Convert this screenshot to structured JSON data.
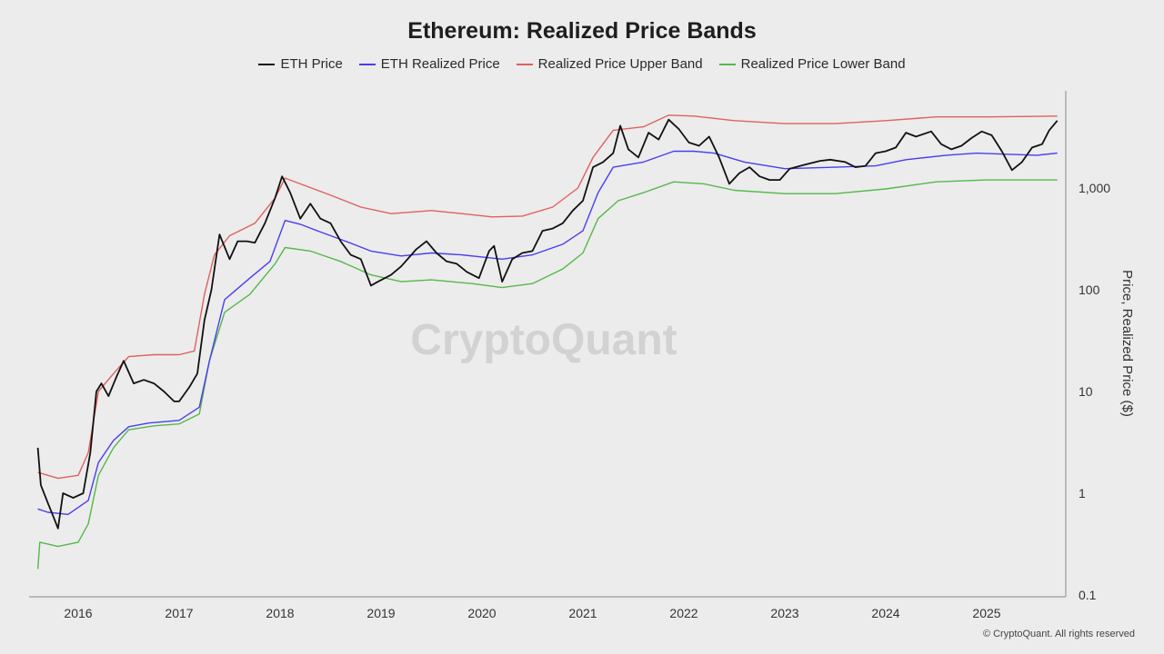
{
  "page": {
    "copyright": "© CryptoQuant. All rights reserved",
    "watermark": "CryptoQuant"
  },
  "chart_data": {
    "type": "line",
    "title": "Ethereum: Realized Price Bands",
    "xlabel": "",
    "ylabel": "Price, Realized Price ($)",
    "yscale": "log",
    "ylim": [
      0.1,
      7000
    ],
    "xlim": [
      2015.6,
      2025.75
    ],
    "x_tick_labels": [
      "2016",
      "2017",
      "2018",
      "2019",
      "2020",
      "2021",
      "2022",
      "2023",
      "2024",
      "2025"
    ],
    "x_ticks": [
      2016,
      2017,
      2018,
      2019,
      2020,
      2021,
      2022,
      2023,
      2024,
      2025
    ],
    "y_tick_labels": [
      "0.1",
      "1",
      "10",
      "100",
      "1,000"
    ],
    "y_ticks": [
      0.1,
      1,
      10,
      100,
      1000
    ],
    "grid": false,
    "legend_position": "top-center",
    "series": [
      {
        "name": "ETH Price",
        "color": "#111111",
        "points": [
          [
            2015.6,
            2.8
          ],
          [
            2015.63,
            1.2
          ],
          [
            2015.7,
            0.8
          ],
          [
            2015.75,
            0.6
          ],
          [
            2015.8,
            0.45
          ],
          [
            2015.85,
            1.0
          ],
          [
            2015.95,
            0.9
          ],
          [
            2016.05,
            1.0
          ],
          [
            2016.12,
            2.5
          ],
          [
            2016.18,
            10
          ],
          [
            2016.23,
            12
          ],
          [
            2016.3,
            9
          ],
          [
            2016.38,
            14
          ],
          [
            2016.45,
            20
          ],
          [
            2016.55,
            12
          ],
          [
            2016.65,
            13
          ],
          [
            2016.75,
            12
          ],
          [
            2016.85,
            10
          ],
          [
            2016.95,
            8
          ],
          [
            2017.0,
            8
          ],
          [
            2017.1,
            11
          ],
          [
            2017.18,
            15
          ],
          [
            2017.25,
            50
          ],
          [
            2017.32,
            100
          ],
          [
            2017.4,
            350
          ],
          [
            2017.5,
            200
          ],
          [
            2017.58,
            300
          ],
          [
            2017.67,
            300
          ],
          [
            2017.75,
            290
          ],
          [
            2017.85,
            450
          ],
          [
            2017.95,
            800
          ],
          [
            2018.02,
            1300
          ],
          [
            2018.1,
            900
          ],
          [
            2018.2,
            500
          ],
          [
            2018.3,
            700
          ],
          [
            2018.4,
            500
          ],
          [
            2018.5,
            450
          ],
          [
            2018.6,
            300
          ],
          [
            2018.7,
            220
          ],
          [
            2018.8,
            200
          ],
          [
            2018.9,
            110
          ],
          [
            2018.97,
            120
          ],
          [
            2019.1,
            140
          ],
          [
            2019.2,
            170
          ],
          [
            2019.35,
            250
          ],
          [
            2019.45,
            300
          ],
          [
            2019.55,
            230
          ],
          [
            2019.65,
            190
          ],
          [
            2019.75,
            180
          ],
          [
            2019.85,
            150
          ],
          [
            2019.97,
            130
          ],
          [
            2020.07,
            240
          ],
          [
            2020.12,
            270
          ],
          [
            2020.2,
            120
          ],
          [
            2020.3,
            200
          ],
          [
            2020.4,
            230
          ],
          [
            2020.5,
            240
          ],
          [
            2020.6,
            380
          ],
          [
            2020.7,
            400
          ],
          [
            2020.8,
            450
          ],
          [
            2020.9,
            600
          ],
          [
            2021.0,
            750
          ],
          [
            2021.1,
            1600
          ],
          [
            2021.2,
            1800
          ],
          [
            2021.3,
            2200
          ],
          [
            2021.37,
            4100
          ],
          [
            2021.45,
            2400
          ],
          [
            2021.55,
            2000
          ],
          [
            2021.65,
            3500
          ],
          [
            2021.75,
            3000
          ],
          [
            2021.85,
            4700
          ],
          [
            2021.95,
            3800
          ],
          [
            2022.05,
            2800
          ],
          [
            2022.15,
            2600
          ],
          [
            2022.25,
            3200
          ],
          [
            2022.35,
            2000
          ],
          [
            2022.45,
            1100
          ],
          [
            2022.55,
            1400
          ],
          [
            2022.65,
            1600
          ],
          [
            2022.75,
            1300
          ],
          [
            2022.85,
            1200
          ],
          [
            2022.95,
            1200
          ],
          [
            2023.05,
            1550
          ],
          [
            2023.2,
            1700
          ],
          [
            2023.35,
            1850
          ],
          [
            2023.45,
            1900
          ],
          [
            2023.6,
            1800
          ],
          [
            2023.7,
            1600
          ],
          [
            2023.8,
            1650
          ],
          [
            2023.9,
            2200
          ],
          [
            2024.0,
            2300
          ],
          [
            2024.1,
            2500
          ],
          [
            2024.2,
            3500
          ],
          [
            2024.3,
            3200
          ],
          [
            2024.45,
            3600
          ],
          [
            2024.55,
            2700
          ],
          [
            2024.65,
            2400
          ],
          [
            2024.75,
            2600
          ],
          [
            2024.85,
            3100
          ],
          [
            2024.95,
            3600
          ],
          [
            2025.05,
            3300
          ],
          [
            2025.15,
            2300
          ],
          [
            2025.25,
            1500
          ],
          [
            2025.35,
            1800
          ],
          [
            2025.45,
            2500
          ],
          [
            2025.55,
            2700
          ],
          [
            2025.62,
            3700
          ],
          [
            2025.7,
            4600
          ]
        ]
      },
      {
        "name": "ETH Realized Price",
        "color": "#4a3df0",
        "points": [
          [
            2015.6,
            0.7
          ],
          [
            2015.7,
            0.65
          ],
          [
            2015.9,
            0.62
          ],
          [
            2016.1,
            0.85
          ],
          [
            2016.2,
            2.0
          ],
          [
            2016.35,
            3.3
          ],
          [
            2016.5,
            4.5
          ],
          [
            2016.7,
            4.9
          ],
          [
            2017.0,
            5.2
          ],
          [
            2017.2,
            7
          ],
          [
            2017.3,
            20
          ],
          [
            2017.45,
            80
          ],
          [
            2017.7,
            130
          ],
          [
            2017.9,
            190
          ],
          [
            2018.05,
            480
          ],
          [
            2018.2,
            440
          ],
          [
            2018.4,
            370
          ],
          [
            2018.65,
            300
          ],
          [
            2018.9,
            240
          ],
          [
            2019.2,
            215
          ],
          [
            2019.5,
            230
          ],
          [
            2019.8,
            220
          ],
          [
            2020.0,
            210
          ],
          [
            2020.2,
            200
          ],
          [
            2020.5,
            220
          ],
          [
            2020.8,
            280
          ],
          [
            2021.0,
            380
          ],
          [
            2021.15,
            900
          ],
          [
            2021.3,
            1600
          ],
          [
            2021.6,
            1800
          ],
          [
            2021.9,
            2300
          ],
          [
            2022.1,
            2300
          ],
          [
            2022.3,
            2200
          ],
          [
            2022.6,
            1800
          ],
          [
            2023.0,
            1550
          ],
          [
            2023.5,
            1600
          ],
          [
            2023.9,
            1650
          ],
          [
            2024.2,
            1900
          ],
          [
            2024.6,
            2100
          ],
          [
            2024.9,
            2200
          ],
          [
            2025.2,
            2150
          ],
          [
            2025.5,
            2100
          ],
          [
            2025.7,
            2200
          ]
        ]
      },
      {
        "name": "Realized Price Upper Band",
        "color": "#e06060",
        "points": [
          [
            2015.6,
            1.6
          ],
          [
            2015.8,
            1.4
          ],
          [
            2016.0,
            1.5
          ],
          [
            2016.1,
            2.5
          ],
          [
            2016.2,
            10
          ],
          [
            2016.35,
            15
          ],
          [
            2016.5,
            22
          ],
          [
            2016.75,
            23
          ],
          [
            2017.0,
            23
          ],
          [
            2017.15,
            25
          ],
          [
            2017.25,
            90
          ],
          [
            2017.35,
            220
          ],
          [
            2017.5,
            340
          ],
          [
            2017.75,
            450
          ],
          [
            2017.95,
            800
          ],
          [
            2018.05,
            1250
          ],
          [
            2018.2,
            1100
          ],
          [
            2018.5,
            850
          ],
          [
            2018.8,
            650
          ],
          [
            2019.1,
            560
          ],
          [
            2019.5,
            600
          ],
          [
            2019.8,
            560
          ],
          [
            2020.1,
            520
          ],
          [
            2020.4,
            530
          ],
          [
            2020.7,
            650
          ],
          [
            2020.95,
            1000
          ],
          [
            2021.1,
            2000
          ],
          [
            2021.3,
            3700
          ],
          [
            2021.6,
            4000
          ],
          [
            2021.85,
            5200
          ],
          [
            2022.1,
            5100
          ],
          [
            2022.5,
            4600
          ],
          [
            2023.0,
            4300
          ],
          [
            2023.5,
            4300
          ],
          [
            2024.0,
            4600
          ],
          [
            2024.5,
            5000
          ],
          [
            2025.0,
            5000
          ],
          [
            2025.7,
            5100
          ]
        ]
      },
      {
        "name": "Realized Price Lower Band",
        "color": "#55b84a",
        "points": [
          [
            2015.6,
            0.18
          ],
          [
            2015.62,
            0.33
          ],
          [
            2015.8,
            0.3
          ],
          [
            2016.0,
            0.33
          ],
          [
            2016.1,
            0.5
          ],
          [
            2016.2,
            1.5
          ],
          [
            2016.35,
            2.8
          ],
          [
            2016.5,
            4.2
          ],
          [
            2016.75,
            4.6
          ],
          [
            2017.0,
            4.8
          ],
          [
            2017.2,
            6
          ],
          [
            2017.3,
            20
          ],
          [
            2017.45,
            60
          ],
          [
            2017.7,
            90
          ],
          [
            2017.95,
            180
          ],
          [
            2018.05,
            260
          ],
          [
            2018.3,
            240
          ],
          [
            2018.6,
            190
          ],
          [
            2018.9,
            140
          ],
          [
            2019.2,
            120
          ],
          [
            2019.5,
            125
          ],
          [
            2019.9,
            115
          ],
          [
            2020.2,
            105
          ],
          [
            2020.5,
            115
          ],
          [
            2020.8,
            160
          ],
          [
            2021.0,
            230
          ],
          [
            2021.15,
            500
          ],
          [
            2021.35,
            750
          ],
          [
            2021.6,
            900
          ],
          [
            2021.9,
            1150
          ],
          [
            2022.2,
            1100
          ],
          [
            2022.5,
            950
          ],
          [
            2023.0,
            880
          ],
          [
            2023.5,
            880
          ],
          [
            2024.0,
            980
          ],
          [
            2024.5,
            1150
          ],
          [
            2025.0,
            1200
          ],
          [
            2025.7,
            1200
          ]
        ]
      }
    ]
  }
}
